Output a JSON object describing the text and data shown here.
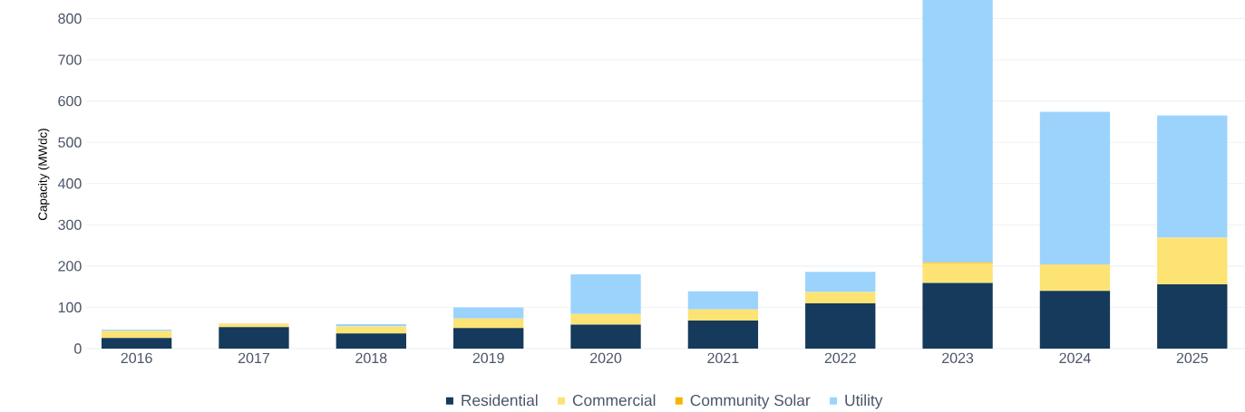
{
  "chart_data": {
    "type": "bar",
    "stacked": true,
    "ylabel": "Capacity (MWdc)",
    "categories": [
      "2016",
      "2017",
      "2018",
      "2019",
      "2020",
      "2021",
      "2022",
      "2023",
      "2024",
      "2025"
    ],
    "series": [
      {
        "name": "Residential",
        "color": "#153a5b",
        "values": [
          26,
          52,
          37,
          50,
          58,
          68,
          110,
          159,
          140,
          156
        ]
      },
      {
        "name": "Commercial",
        "color": "#fce374",
        "values": [
          17,
          9,
          17,
          23,
          26,
          27,
          27,
          48,
          64,
          113
        ]
      },
      {
        "name": "Community Solar",
        "color": "#f5b400",
        "values": [
          0,
          0,
          0,
          0,
          0,
          0,
          0,
          2,
          0,
          0
        ]
      },
      {
        "name": "Utility",
        "color": "#9bd3fd",
        "values": [
          3,
          0,
          5,
          27,
          96,
          44,
          49,
          636,
          370,
          296
        ]
      }
    ],
    "ylim": [
      0,
      845
    ],
    "yticks": [
      0,
      100,
      200,
      300,
      400,
      500,
      600,
      700,
      800
    ],
    "grid": "y",
    "legend": "bottom"
  }
}
